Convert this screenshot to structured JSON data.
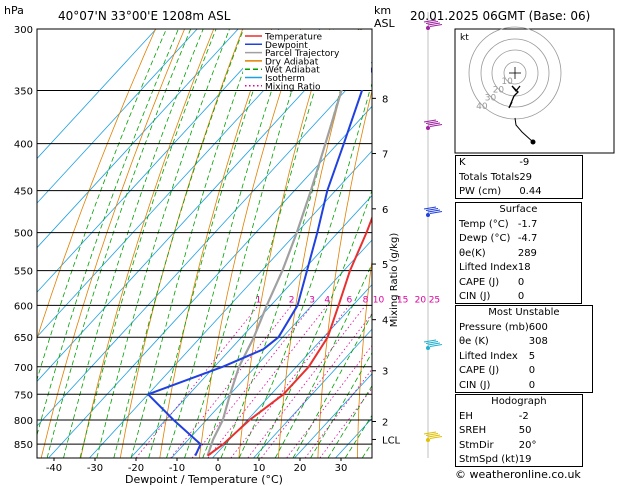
{
  "header": {
    "units_left": "hPa",
    "location": "40°07'N  33°00'E  1208m  ASL",
    "units_km": "km",
    "units_asl": "ASL",
    "datetime": "20.01.2025  06GMT  (Base: 06)"
  },
  "legend": [
    "Temperature",
    "Dewpoint",
    "Parcel Trajectory",
    "Dry Adiabat",
    "Wet Adiabat",
    "Isotherm",
    "Mixing Ratio"
  ],
  "colors": {
    "temperature": "#e83030",
    "dewpoint": "#2040e0",
    "parcel": "#a0a0a0",
    "dry_adiabat": "#e08000",
    "wet_adiabat": "#00a000",
    "isotherm": "#20a0e0",
    "mixing_ratio": "#e000a0"
  },
  "chart_data": {
    "type": "skew-t",
    "xlabel": "Dewpoint / Temperature (°C)",
    "ylabel_right": "Mixing Ratio (g/kg)",
    "pressure_levels": [
      300,
      350,
      400,
      450,
      500,
      550,
      600,
      650,
      700,
      750,
      800,
      850
    ],
    "temp_ticks": [
      -40,
      -30,
      -20,
      -10,
      0,
      10,
      20,
      30
    ],
    "km_ticks": [
      {
        "km": "8",
        "p": 357
      },
      {
        "km": "7",
        "p": 410
      },
      {
        "km": "6",
        "p": 471
      },
      {
        "km": "5",
        "p": 541
      },
      {
        "km": "4",
        "p": 622
      },
      {
        "km": "3",
        "p": 707
      },
      {
        "km": "2",
        "p": 803
      },
      {
        "km": "LCL",
        "p": 840
      }
    ],
    "mixing_ratio_labels": [
      "1",
      "2",
      "3",
      "4",
      "6",
      "8",
      "10",
      "15",
      "20",
      "25"
    ],
    "mixing_ratio_values": [
      1,
      2,
      3,
      4,
      6,
      8,
      10,
      15,
      20,
      25
    ],
    "temperature": [
      [
        875,
        -1.7
      ],
      [
        850,
        -0.5
      ],
      [
        800,
        0.5
      ],
      [
        750,
        3
      ],
      [
        700,
        3
      ],
      [
        650,
        1
      ],
      [
        600,
        -3.5
      ],
      [
        550,
        -8.5
      ],
      [
        500,
        -13
      ],
      [
        450,
        -18.5
      ],
      [
        400,
        -24.5
      ],
      [
        350,
        -33
      ],
      [
        300,
        -42
      ]
    ],
    "dewpoint": [
      [
        875,
        -4.7
      ],
      [
        850,
        -6
      ],
      [
        800,
        -18
      ],
      [
        750,
        -30
      ],
      [
        700,
        -18
      ],
      [
        670,
        -12
      ],
      [
        650,
        -11
      ],
      [
        600,
        -13.5
      ],
      [
        550,
        -19
      ],
      [
        500,
        -25
      ],
      [
        450,
        -32
      ],
      [
        400,
        -38.5
      ],
      [
        350,
        -46
      ],
      [
        300,
        -53
      ]
    ],
    "parcel": [
      [
        875,
        -1.7
      ],
      [
        840,
        -4
      ],
      [
        800,
        -6
      ],
      [
        750,
        -10
      ],
      [
        700,
        -14
      ],
      [
        650,
        -17
      ],
      [
        600,
        -21
      ],
      [
        550,
        -25
      ],
      [
        500,
        -30
      ],
      [
        450,
        -36
      ],
      [
        400,
        -43
      ],
      [
        350,
        -51
      ],
      [
        300,
        -60
      ]
    ]
  },
  "hodograph": {
    "label": "kt",
    "rings": [
      "10",
      "20",
      "30",
      "40"
    ]
  },
  "indices": [
    {
      "label": "K",
      "value": "-9"
    },
    {
      "label": "Totals Totals",
      "value": "29"
    },
    {
      "label": "PW (cm)",
      "value": "0.44"
    }
  ],
  "surface": {
    "title": "Surface",
    "rows": [
      {
        "label": "Temp (°C)",
        "value": "-1.7"
      },
      {
        "label": "Dewp (°C)",
        "value": "-4.7"
      },
      {
        "label": "θe(K)",
        "value": "289"
      },
      {
        "label": "Lifted Index",
        "value": "18"
      },
      {
        "label": "CAPE (J)",
        "value": "0"
      },
      {
        "label": "CIN (J)",
        "value": "0"
      }
    ]
  },
  "most_unstable": {
    "title": "Most Unstable",
    "rows": [
      {
        "label": "Pressure (mb)",
        "value": "600"
      },
      {
        "label": "θe (K)",
        "value": "308"
      },
      {
        "label": "Lifted Index",
        "value": "5"
      },
      {
        "label": "CAPE (J)",
        "value": "0"
      },
      {
        "label": "CIN (J)",
        "value": "0"
      }
    ]
  },
  "hodograph_table": {
    "title": "Hodograph",
    "rows": [
      {
        "label": "EH",
        "value": "-2"
      },
      {
        "label": "SREH",
        "value": "50"
      },
      {
        "label": "StmDir",
        "value": "20°"
      },
      {
        "label": "StmSpd (kt)",
        "value": "19"
      }
    ]
  },
  "copyright": "© weatheronline.co.uk"
}
